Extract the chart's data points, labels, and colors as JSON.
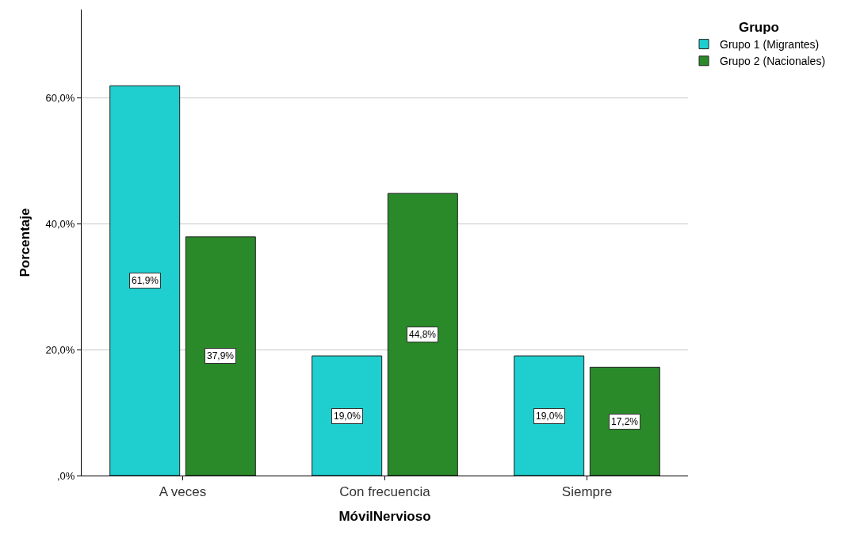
{
  "chart_data": {
    "type": "bar",
    "xlabel": "MóvilNervioso",
    "ylabel": "Porcentaje",
    "legend_title": "Grupo",
    "categories": [
      "A veces",
      "Con frecuencia",
      "Siempre"
    ],
    "series": [
      {
        "name": "Grupo 1 (Migrantes)",
        "color": "#1fcece",
        "values": [
          61.9,
          19.0,
          19.0
        ],
        "value_labels": [
          "61,9%",
          "19,0%",
          "19,0%"
        ]
      },
      {
        "name": "Grupo 2 (Nacionales)",
        "color": "#2a8a2a",
        "values": [
          37.9,
          44.8,
          17.2
        ],
        "value_labels": [
          "37,9%",
          "44,8%",
          "17,2%"
        ]
      }
    ],
    "ylim": [
      0,
      74
    ],
    "yticks": [
      {
        "value": 0,
        "label": ",0%"
      },
      {
        "value": 20,
        "label": "20,0%"
      },
      {
        "value": 40,
        "label": "40,0%"
      },
      {
        "value": 60,
        "label": "60,0%"
      }
    ],
    "grid": "y",
    "legend": "top right"
  }
}
